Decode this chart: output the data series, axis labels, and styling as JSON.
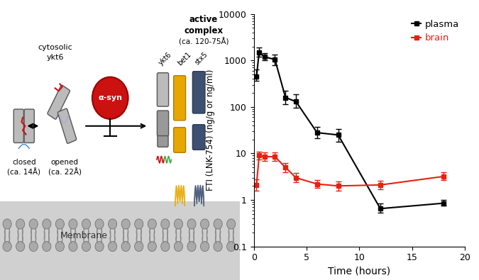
{
  "plasma_x": [
    0.25,
    0.5,
    1,
    2,
    3,
    4,
    6,
    8,
    12,
    18
  ],
  "plasma_y": [
    450,
    1500,
    1200,
    1050,
    160,
    130,
    28,
    25,
    0.65,
    0.85
  ],
  "plasma_yerr_low": [
    80,
    300,
    180,
    250,
    45,
    35,
    7,
    7,
    0.12,
    0.1
  ],
  "plasma_yerr_high": [
    180,
    400,
    220,
    300,
    65,
    55,
    9,
    9,
    0.18,
    0.15
  ],
  "brain_x": [
    0.25,
    0.5,
    1,
    2,
    3,
    4,
    6,
    8,
    12,
    18
  ],
  "brain_y": [
    2.1,
    9.0,
    8.5,
    8.5,
    5.0,
    3.0,
    2.2,
    2.0,
    2.1,
    3.2
  ],
  "brain_yerr_low": [
    0.5,
    1.5,
    1.5,
    1.5,
    1.0,
    0.6,
    0.4,
    0.4,
    0.4,
    0.5
  ],
  "brain_yerr_high": [
    0.7,
    2.0,
    2.0,
    2.0,
    1.2,
    0.8,
    0.5,
    0.5,
    0.5,
    0.7
  ],
  "plasma_color": "#000000",
  "brain_color": "#e82010",
  "xlabel": "Time (hours)",
  "ylabel": "FTI (LNK-754) (ng/g or ng/ml)",
  "ylim_low": 0.1,
  "ylim_high": 10000,
  "xlim_low": 0,
  "xlim_high": 20,
  "xticks": [
    0,
    5,
    10,
    15,
    20
  ],
  "legend_plasma": "plasma",
  "legend_brain": "brain",
  "fig_width": 6.75,
  "fig_height": 3.95,
  "background_color": "#ffffff",
  "gray_color": "#aaaaaa",
  "dark_gray": "#888888",
  "membrane_color": "#999999",
  "yellow_color": "#e6a800",
  "dark_blue": "#2d4060",
  "red_color": "#cc1111",
  "green_color": "#44aa44"
}
